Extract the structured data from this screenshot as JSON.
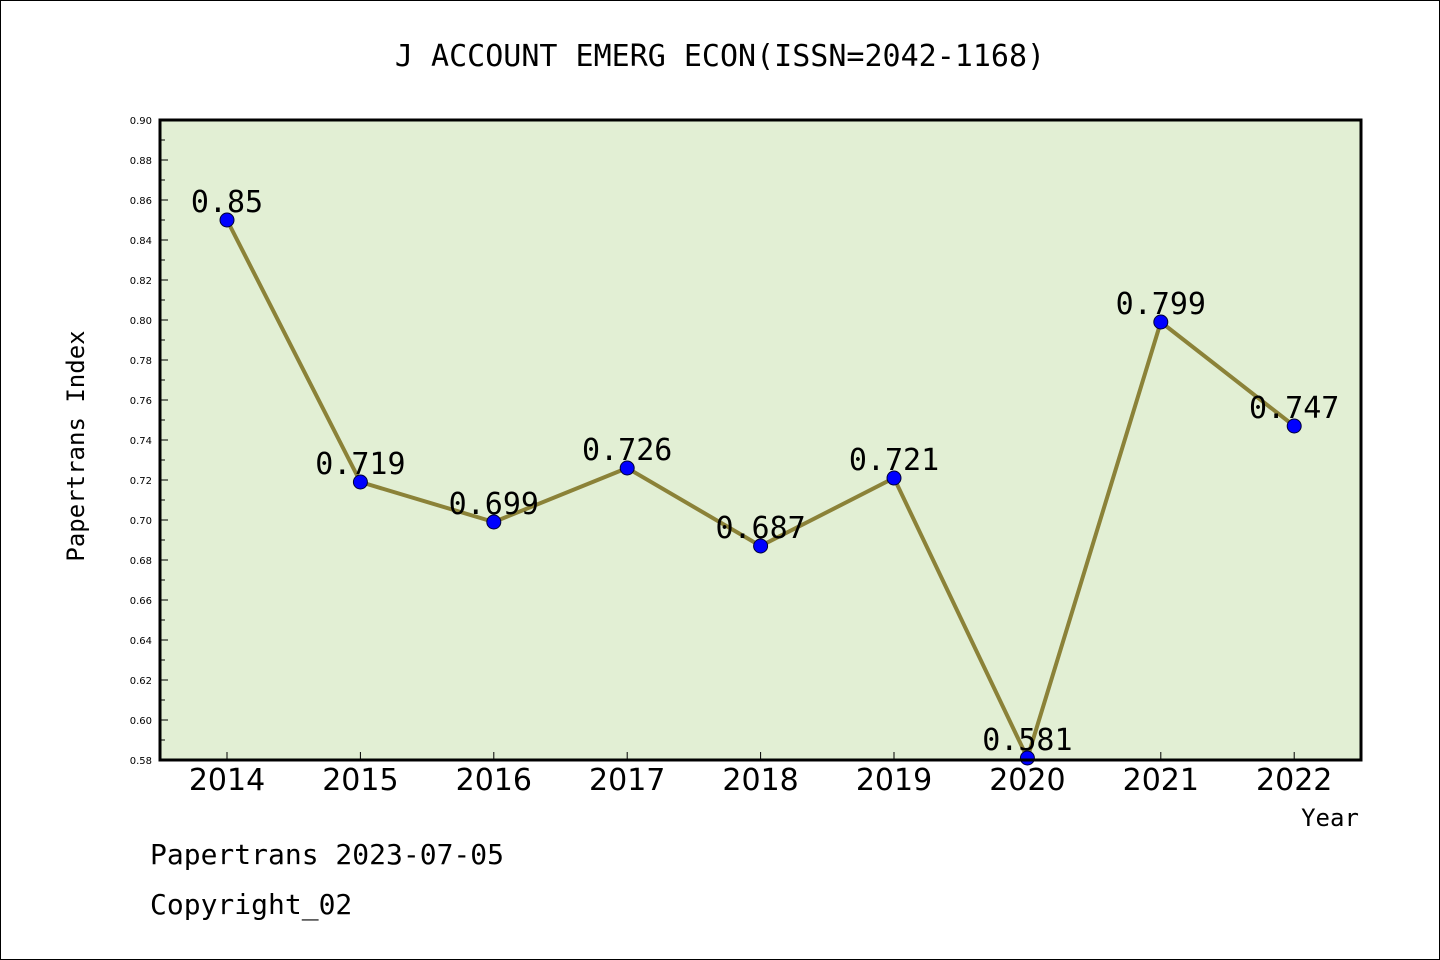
{
  "chart_data": {
    "type": "line",
    "title": "J ACCOUNT EMERG ECON(ISSN=2042-1168)",
    "xlabel": "Year",
    "ylabel": "Papertrans Index",
    "categories": [
      "2014",
      "2015",
      "2016",
      "2017",
      "2018",
      "2019",
      "2020",
      "2021",
      "2022"
    ],
    "series": [
      {
        "values": [
          0.85,
          0.719,
          0.699,
          0.726,
          0.687,
          0.721,
          0.581,
          0.799,
          0.747
        ],
        "data_labels": [
          "0.85",
          "0.719",
          "0.699",
          "0.726",
          "0.687",
          "0.721",
          "0.581",
          "0.799",
          "0.747"
        ],
        "line_color": "#8b8238",
        "marker_color": "#0000ff"
      }
    ],
    "ylim": [
      0.58,
      0.9
    ],
    "yticks": [
      "0.58",
      "0.60",
      "0.62",
      "0.64",
      "0.66",
      "0.68",
      "0.70",
      "0.72",
      "0.74",
      "0.76",
      "0.78",
      "0.80",
      "0.82",
      "0.84",
      "0.86",
      "0.88",
      "0.90"
    ],
    "grid": false,
    "legend": "none",
    "plot_background": "#e2efd4"
  },
  "footer": {
    "line1": "Papertrans 2023-07-05",
    "line2": "Copyright_02"
  }
}
